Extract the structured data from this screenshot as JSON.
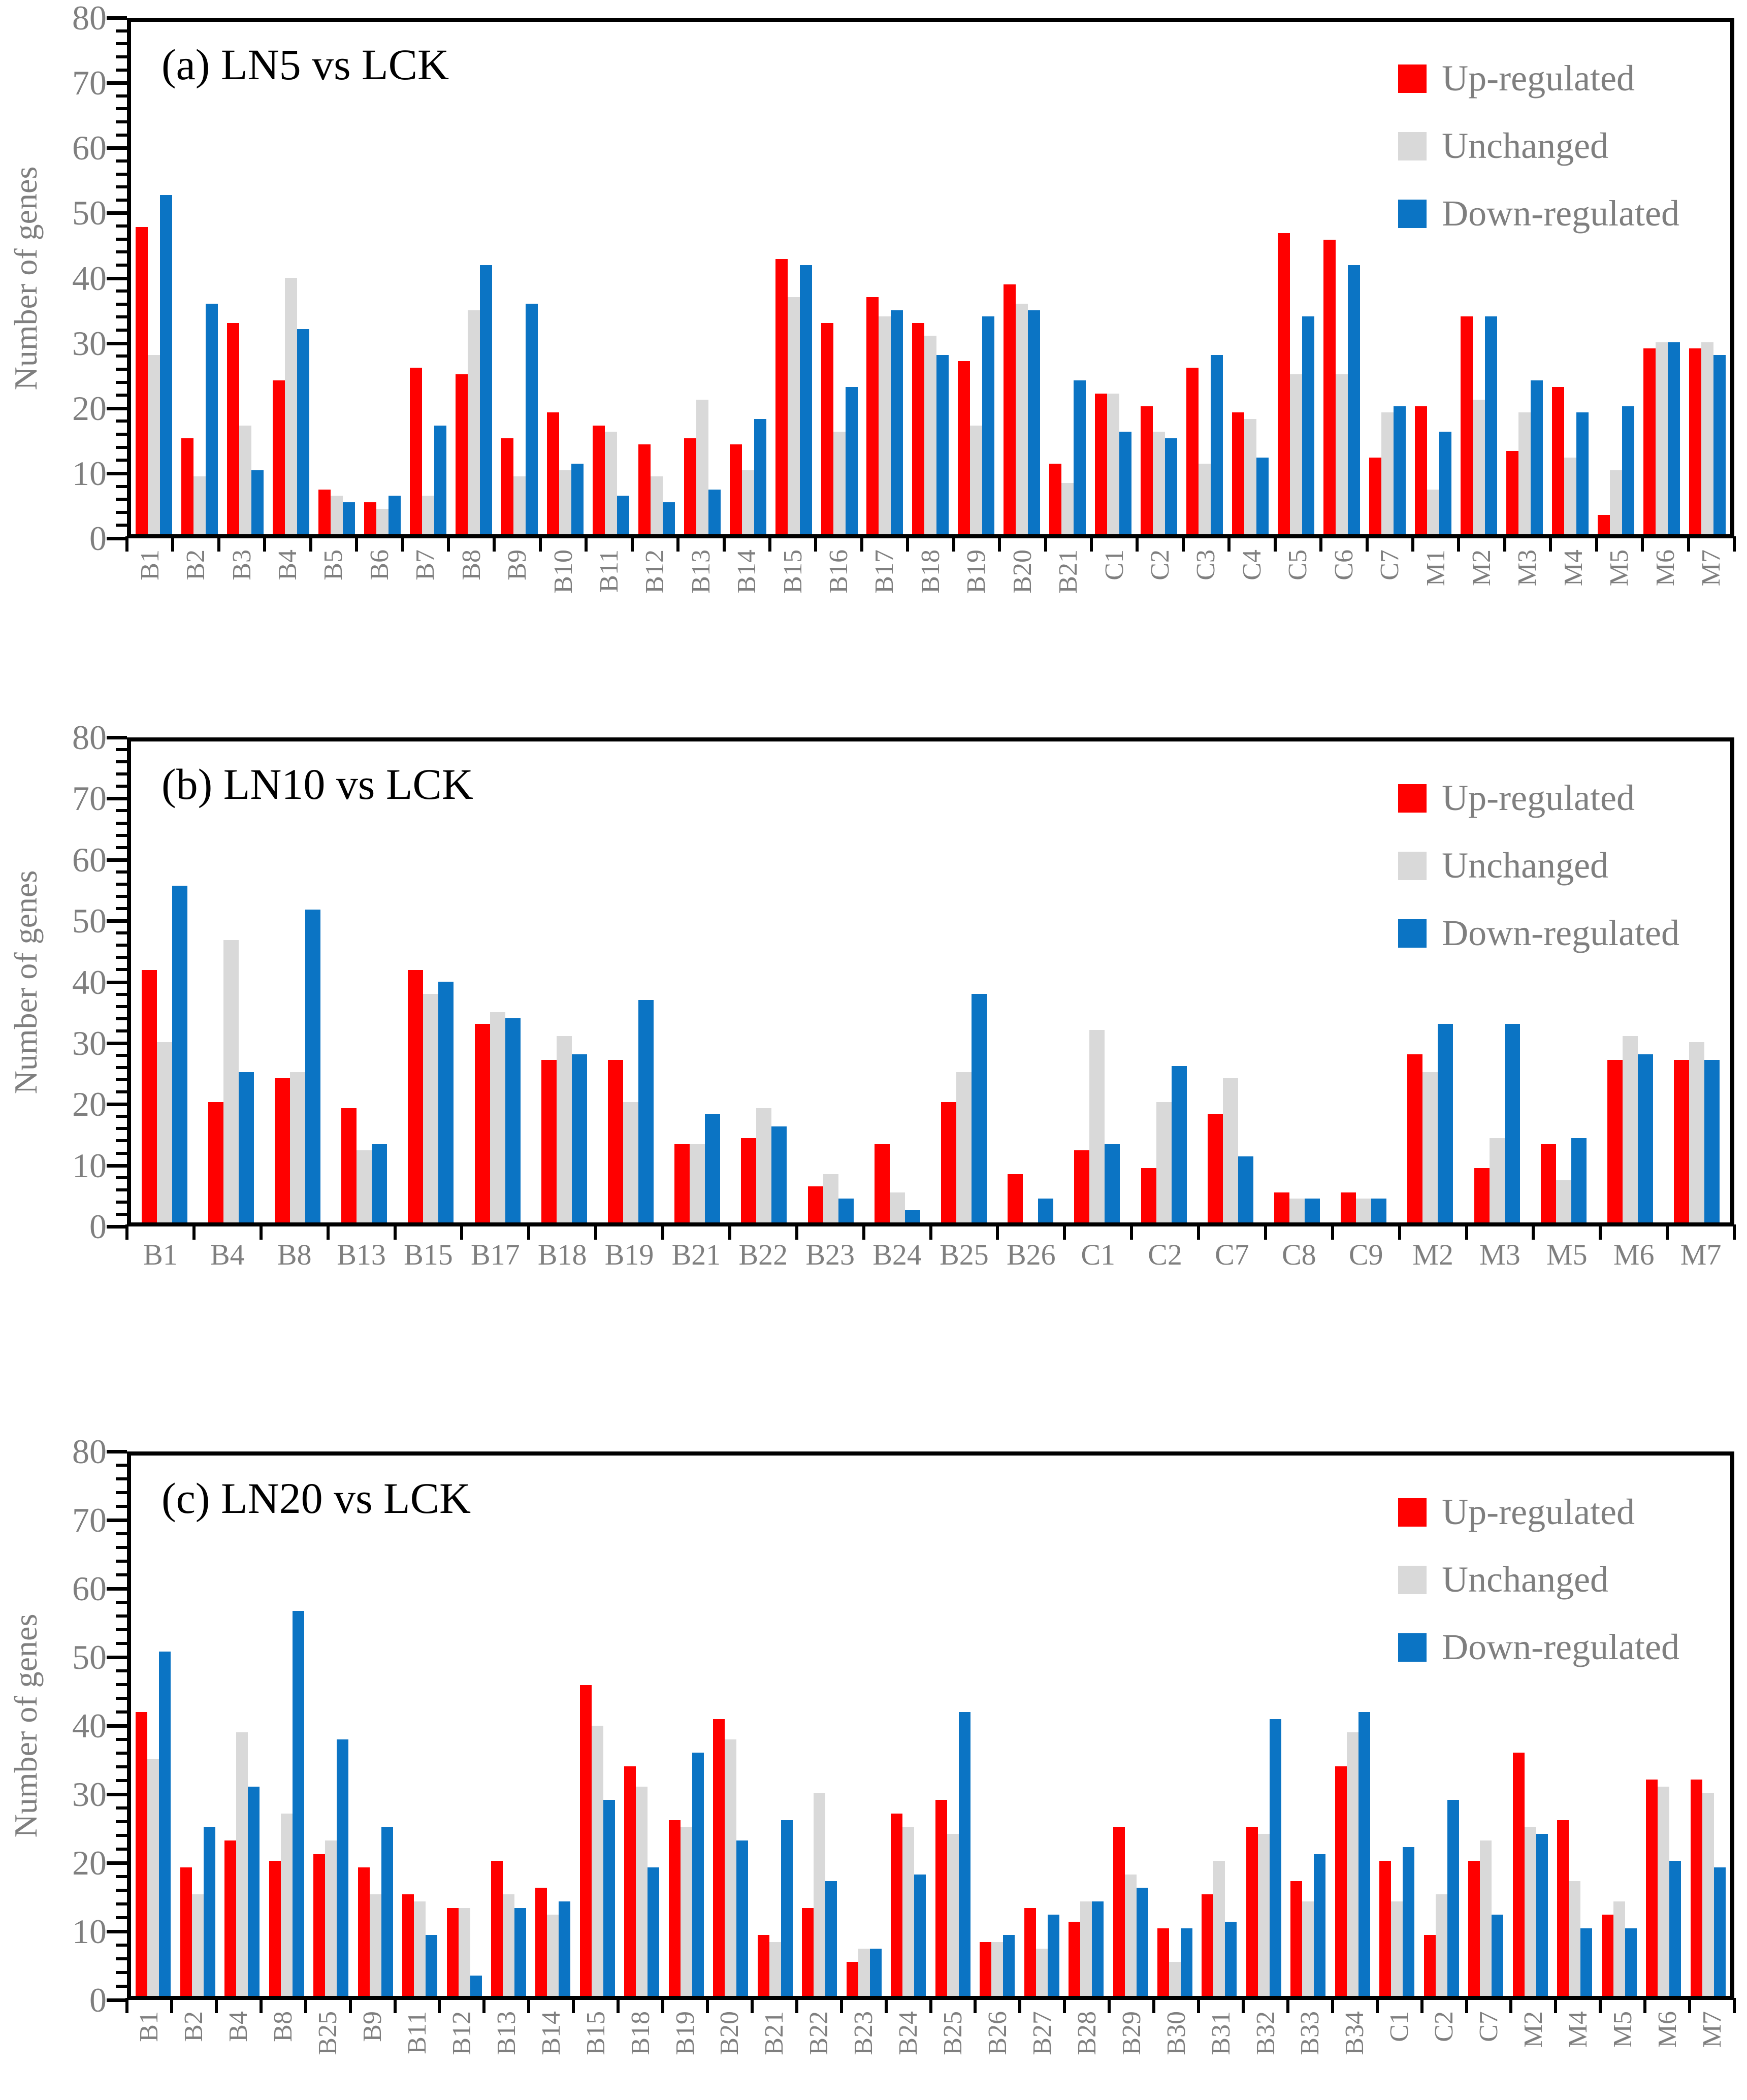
{
  "figure": {
    "background": "#FFFFFF",
    "text_color": "#7F7F7F",
    "axis_color": "#000000"
  },
  "chart_data": [
    {
      "type": "bar",
      "title": "(a) LN5 vs LCK",
      "ylabel": "Number of genes",
      "ylim": [
        0,
        80
      ],
      "ytick_major": 10,
      "ytick_minor": 2,
      "yticklabels": [
        0,
        10,
        20,
        30,
        40,
        50,
        60,
        70,
        80
      ],
      "grid": false,
      "legend_position": "top-right",
      "x_label_orientation": "vertical",
      "categories": [
        "B1",
        "B2",
        "B3",
        "B4",
        "B5",
        "B6",
        "B7",
        "B8",
        "B9",
        "B10",
        "B11",
        "B12",
        "B13",
        "B14",
        "B15",
        "B16",
        "B17",
        "B18",
        "B19",
        "B20",
        "B21",
        "C1",
        "C2",
        "C3",
        "C4",
        "C5",
        "C6",
        "C7",
        "M1",
        "M2",
        "M3",
        "M4",
        "M5",
        "M6",
        "M7"
      ],
      "series": [
        {
          "name": "Up-regulated",
          "color": "#FF0000",
          "values": [
            48,
            15,
            33,
            24,
            7,
            5,
            26,
            25,
            15,
            19,
            17,
            14,
            15,
            14,
            43,
            33,
            37,
            33,
            27,
            39,
            11,
            22,
            20,
            26,
            19,
            47,
            46,
            12,
            20,
            34,
            13,
            23,
            3,
            29,
            29
          ]
        },
        {
          "name": "Unchanged",
          "color": "#D9D9D9",
          "values": [
            28,
            9,
            17,
            40,
            6,
            4,
            6,
            35,
            9,
            10,
            16,
            9,
            21,
            10,
            37,
            16,
            34,
            31,
            17,
            36,
            8,
            22,
            16,
            11,
            18,
            25,
            25,
            19,
            7,
            21,
            19,
            12,
            10,
            30,
            30
          ]
        },
        {
          "name": "Down-regulated",
          "color": "#0B74C4",
          "values": [
            53,
            36,
            10,
            32,
            5,
            6,
            17,
            42,
            36,
            11,
            6,
            5,
            7,
            18,
            42,
            23,
            35,
            28,
            34,
            35,
            24,
            16,
            15,
            28,
            12,
            34,
            42,
            20,
            16,
            34,
            24,
            19,
            20,
            30,
            28
          ]
        }
      ]
    },
    {
      "type": "bar",
      "title": "(b) LN10 vs LCK",
      "ylabel": "Number of genes",
      "ylim": [
        0,
        80
      ],
      "ytick_major": 10,
      "ytick_minor": 2,
      "yticklabels": [
        0,
        10,
        20,
        30,
        40,
        50,
        60,
        70,
        80
      ],
      "grid": false,
      "legend_position": "top-right",
      "x_label_orientation": "horizontal",
      "categories": [
        "B1",
        "B4",
        "B8",
        "B13",
        "B15",
        "B17",
        "B18",
        "B19",
        "B21",
        "B22",
        "B23",
        "B24",
        "B25",
        "B26",
        "C1",
        "C2",
        "C7",
        "C8",
        "C9",
        "M2",
        "M3",
        "M5",
        "M6",
        "M7"
      ],
      "series": [
        {
          "name": "Up-regulated",
          "color": "#FF0000",
          "values": [
            42,
            20,
            24,
            19,
            42,
            33,
            27,
            27,
            13,
            14,
            6,
            13,
            20,
            8,
            12,
            9,
            18,
            5,
            5,
            28,
            9,
            13,
            27,
            27
          ]
        },
        {
          "name": "Unchanged",
          "color": "#D9D9D9",
          "values": [
            30,
            47,
            25,
            12,
            38,
            35,
            31,
            20,
            13,
            19,
            8,
            5,
            25,
            0,
            32,
            20,
            24,
            4,
            4,
            25,
            14,
            7,
            31,
            30
          ]
        },
        {
          "name": "Down-regulated",
          "color": "#0B74C4",
          "values": [
            56,
            25,
            52,
            13,
            40,
            34,
            28,
            37,
            18,
            16,
            4,
            2,
            38,
            4,
            13,
            26,
            11,
            4,
            4,
            33,
            33,
            14,
            28,
            27
          ]
        }
      ]
    },
    {
      "type": "bar",
      "title": "(c) LN20 vs LCK",
      "ylabel": "Number of genes",
      "ylim": [
        0,
        80
      ],
      "ytick_major": 10,
      "ytick_minor": 2,
      "yticklabels": [
        0,
        10,
        20,
        30,
        40,
        50,
        60,
        70,
        80
      ],
      "grid": false,
      "legend_position": "top-right",
      "x_label_orientation": "vertical",
      "categories": [
        "B1",
        "B2",
        "B4",
        "B8",
        "B25",
        "B9",
        "B11",
        "B12",
        "B13",
        "B14",
        "B15",
        "B18",
        "B19",
        "B20",
        "B21",
        "B22",
        "B23",
        "B24",
        "B25",
        "B26",
        "B27",
        "B28",
        "B29",
        "B30",
        "B31",
        "B32",
        "B33",
        "B34",
        "C1",
        "C2",
        "C7",
        "M2",
        "M4",
        "M5",
        "M6",
        "M7"
      ],
      "series": [
        {
          "name": "Up-regulated",
          "color": "#FF0000",
          "values": [
            42,
            19,
            23,
            20,
            21,
            19,
            15,
            13,
            20,
            16,
            46,
            34,
            26,
            41,
            9,
            13,
            5,
            27,
            29,
            8,
            13,
            11,
            25,
            10,
            15,
            25,
            17,
            34,
            20,
            9,
            20,
            36,
            26,
            12,
            32,
            32
          ]
        },
        {
          "name": "Unchanged",
          "color": "#D9D9D9",
          "values": [
            35,
            15,
            39,
            27,
            23,
            15,
            14,
            13,
            15,
            12,
            40,
            31,
            25,
            38,
            8,
            30,
            7,
            25,
            24,
            8,
            7,
            14,
            18,
            5,
            20,
            24,
            14,
            39,
            14,
            15,
            23,
            25,
            17,
            14,
            31,
            30
          ]
        },
        {
          "name": "Down-regulated",
          "color": "#0B74C4",
          "values": [
            51,
            25,
            31,
            57,
            38,
            25,
            9,
            3,
            13,
            14,
            29,
            19,
            36,
            23,
            26,
            17,
            7,
            18,
            42,
            9,
            12,
            14,
            16,
            10,
            11,
            41,
            21,
            42,
            22,
            29,
            12,
            24,
            10,
            10,
            20,
            19
          ]
        }
      ]
    }
  ]
}
